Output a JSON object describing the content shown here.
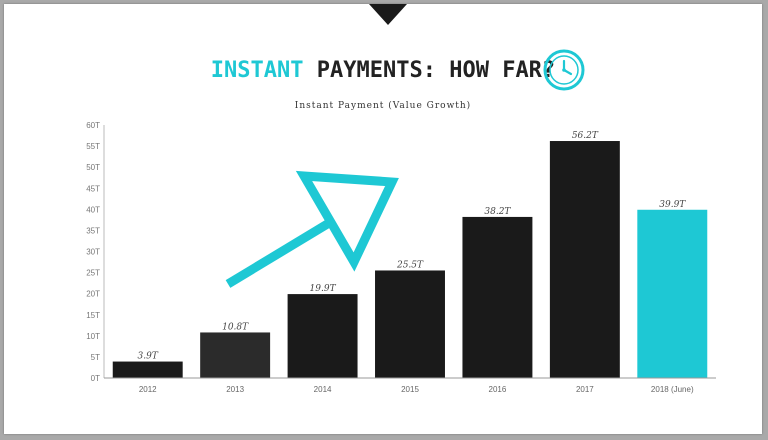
{
  "header": {
    "title_accent": "INSTANT",
    "title_rest": " PAYMENTS: HOW FAR?",
    "icon": "clock-icon"
  },
  "colors": {
    "accent": "#1ec8d4",
    "bar_dark": "#1a1a1a",
    "bar_mid": "#2b2b2b",
    "highlight": "#1ec8d4"
  },
  "chart_data": {
    "type": "bar",
    "title": "Instant Payment (Value Growth)",
    "xlabel": "",
    "ylabel": "",
    "ylim": [
      0,
      60
    ],
    "yticks": [
      "0T",
      "5T",
      "10T",
      "15T",
      "20T",
      "25T",
      "30T",
      "35T",
      "40T",
      "45T",
      "50T",
      "55T",
      "60T"
    ],
    "categories": [
      "2012",
      "2013",
      "2014",
      "2015",
      "2016",
      "2017",
      "2018 (June)"
    ],
    "values": [
      3.9,
      10.8,
      19.9,
      25.5,
      38.2,
      56.2,
      39.9
    ],
    "labels": [
      "3.9T",
      "10.8T",
      "19.9T",
      "25.5T",
      "38.2T",
      "56.2T",
      "39.9T"
    ],
    "bar_colors": [
      "#1a1a1a",
      "#2b2b2b",
      "#1a1a1a",
      "#1a1a1a",
      "#1a1a1a",
      "#1a1a1a",
      "#1ec8d4"
    ],
    "grid": false,
    "legend": "none"
  }
}
